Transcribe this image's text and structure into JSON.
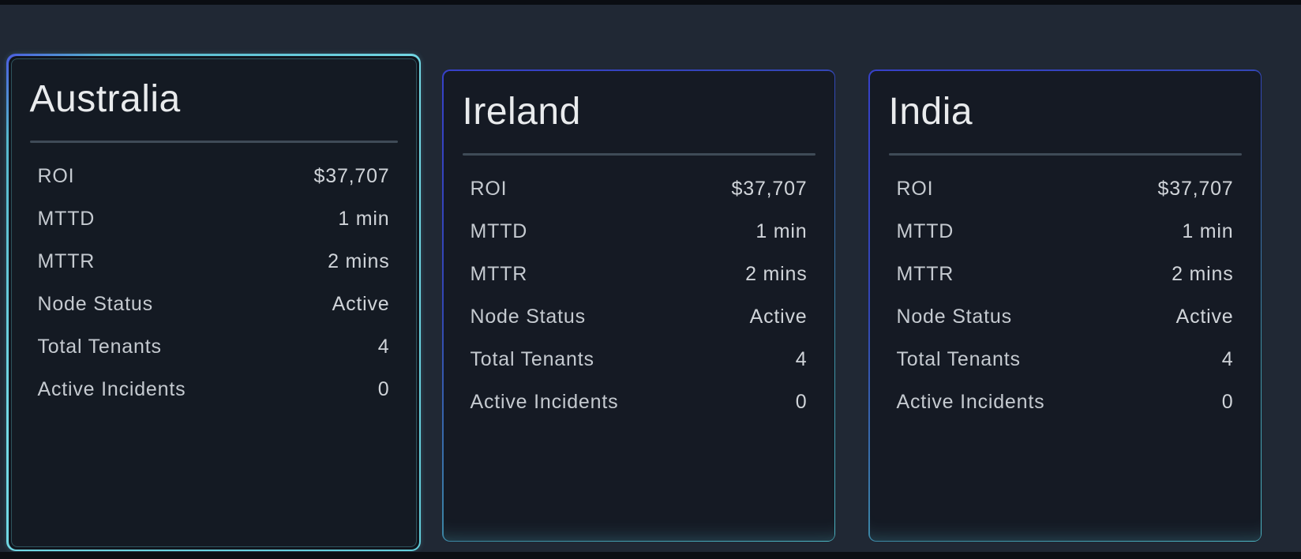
{
  "colors": {
    "page_background": "#202834",
    "card_background": "#141a23",
    "selected_border_cyan": "#74dae6",
    "card_border_blue": "#3741c9",
    "card_border_teal": "#4cb4c2",
    "divider": "#3f4b57",
    "title_text": "#e9ebed",
    "label_text": "#c5cad0",
    "value_text": "#d0d4d9"
  },
  "cards": [
    {
      "name": "Australia",
      "selected": true,
      "stats": [
        {
          "label": "ROI",
          "value": "$37,707"
        },
        {
          "label": "MTTD",
          "value": "1 min"
        },
        {
          "label": "MTTR",
          "value": "2 mins"
        },
        {
          "label": "Node Status",
          "value": "Active"
        },
        {
          "label": "Total Tenants",
          "value": "4"
        },
        {
          "label": "Active Incidents",
          "value": "0"
        }
      ]
    },
    {
      "name": "Ireland",
      "selected": false,
      "stats": [
        {
          "label": "ROI",
          "value": "$37,707"
        },
        {
          "label": "MTTD",
          "value": "1 min"
        },
        {
          "label": "MTTR",
          "value": "2 mins"
        },
        {
          "label": "Node Status",
          "value": "Active"
        },
        {
          "label": "Total Tenants",
          "value": "4"
        },
        {
          "label": "Active Incidents",
          "value": "0"
        }
      ]
    },
    {
      "name": "India",
      "selected": false,
      "stats": [
        {
          "label": "ROI",
          "value": "$37,707"
        },
        {
          "label": "MTTD",
          "value": "1 min"
        },
        {
          "label": "MTTR",
          "value": "2 mins"
        },
        {
          "label": "Node Status",
          "value": "Active"
        },
        {
          "label": "Total Tenants",
          "value": "4"
        },
        {
          "label": "Active Incidents",
          "value": "0"
        }
      ]
    }
  ]
}
